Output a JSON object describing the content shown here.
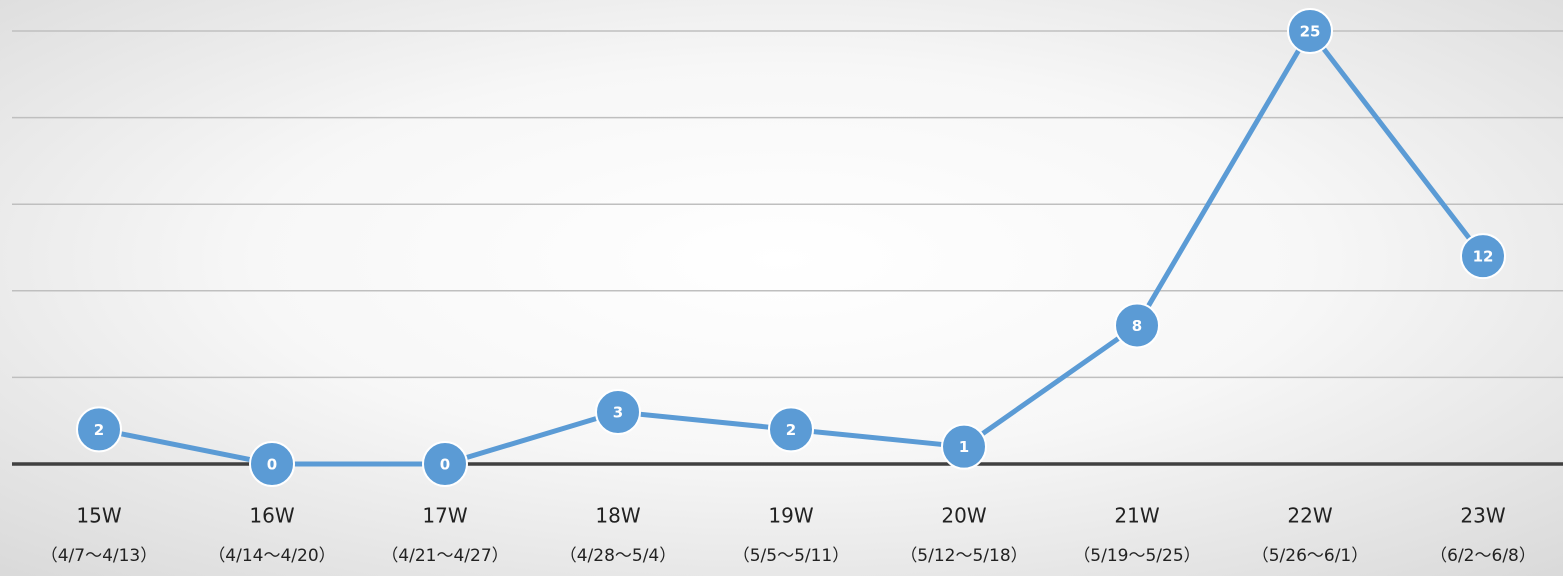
{
  "chart_data": {
    "type": "line",
    "categories": [
      "15W",
      "16W",
      "17W",
      "18W",
      "19W",
      "20W",
      "21W",
      "22W",
      "23W"
    ],
    "date_ranges": [
      "（4/7～4/13）",
      "（4/14～4/20）",
      "（4/21～4/27）",
      "（4/28～5/4）",
      "（5/5～5/11）",
      "（5/12～5/18）",
      "（5/19～5/25）",
      "（5/26～6/1）",
      "（6/2～6/8）"
    ],
    "values": [
      2,
      0,
      0,
      3,
      2,
      1,
      8,
      25,
      12
    ],
    "color": "#5b9bd5",
    "ylim": [
      0,
      25
    ],
    "yticks": [
      0,
      5,
      10,
      15,
      20,
      25
    ],
    "grid": true
  }
}
